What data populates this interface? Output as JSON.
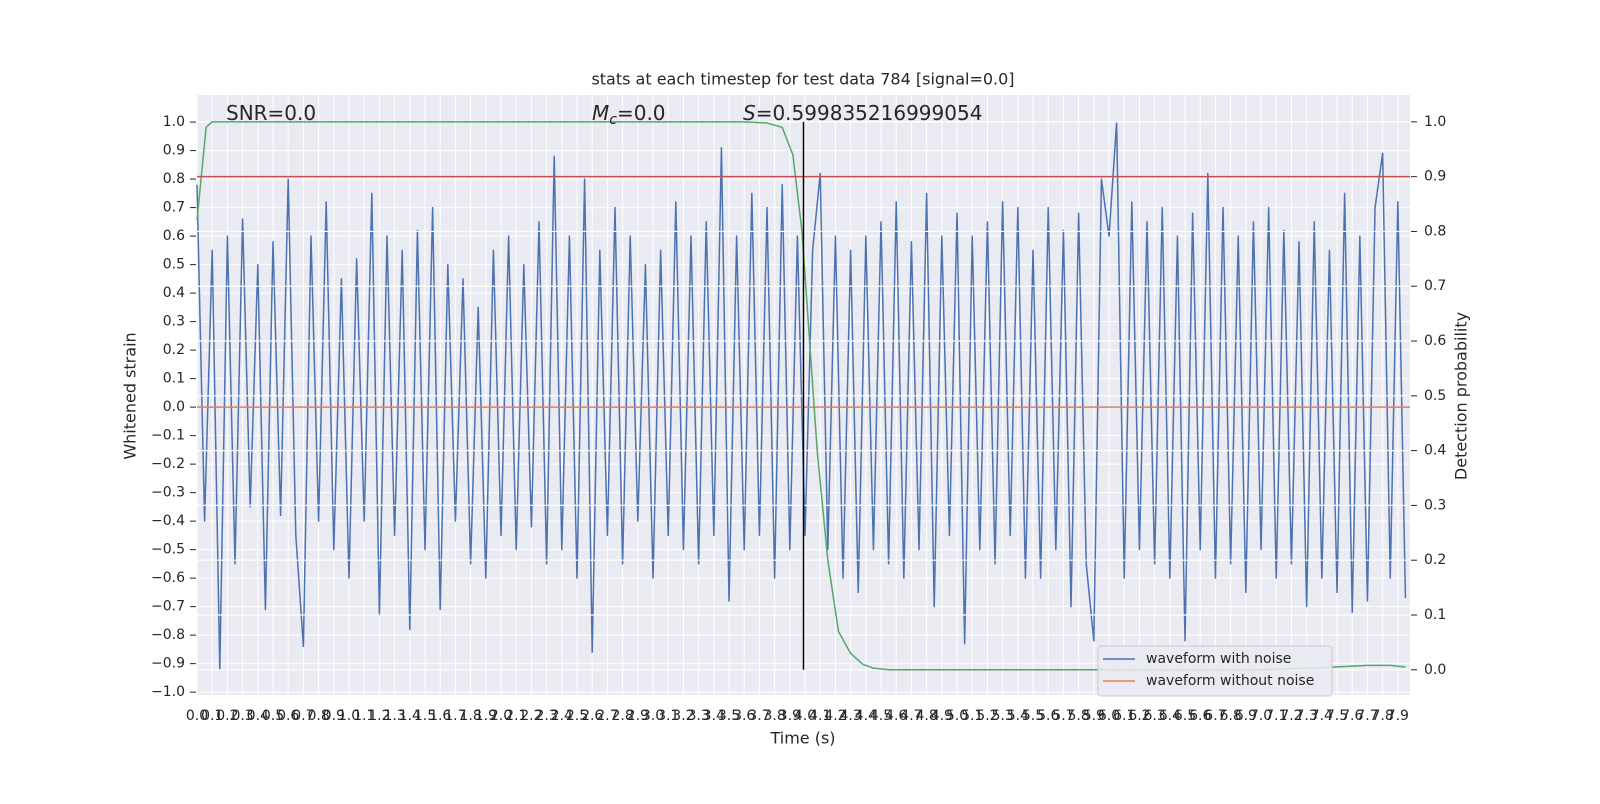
{
  "chart_data": {
    "type": "line",
    "title": "stats at each timestep for test data 784 [signal=0.0]",
    "x_label": "Time (s)",
    "y_label": "Whitened strain",
    "y2_label": "Detection probability",
    "annotations": [
      {
        "text": "SNR=0.0"
      },
      {
        "symbol": "M",
        "subscript": "c",
        "text": "=0.0"
      },
      {
        "symbol": "S",
        "text": "=0.599835216999054"
      }
    ],
    "grid": true,
    "background": "#eaeaf2",
    "legend": "lower right",
    "xlim": [
      0,
      7.98
    ],
    "ylim": [
      -1.01,
      1.095
    ],
    "y2lim": [
      -0.046,
      1.049
    ],
    "xticks": [
      {
        "value": 0,
        "label": "0.0"
      },
      0.1,
      0.2,
      0.3,
      0.4,
      0.5,
      0.6,
      0.7,
      0.8,
      0.9,
      {
        "value": 1,
        "label": "1.0"
      },
      1.1,
      1.2,
      1.3,
      1.4,
      1.5,
      1.6,
      1.7,
      1.8,
      1.9,
      {
        "value": 2,
        "label": "2.0"
      },
      2.1,
      2.2,
      2.3,
      2.4,
      2.5,
      2.6,
      2.7,
      2.8,
      2.9,
      {
        "value": 3,
        "label": "3.0"
      },
      3.1,
      3.2,
      3.3,
      3.4,
      3.5,
      3.6,
      3.7,
      3.8,
      3.9,
      {
        "value": 4,
        "label": "4.0"
      },
      4.1,
      4.2,
      4.3,
      4.4,
      4.5,
      4.6,
      4.7,
      4.8,
      4.9,
      {
        "value": 5,
        "label": "5.0"
      },
      5.1,
      5.2,
      5.3,
      5.4,
      5.5,
      5.6,
      5.7,
      5.8,
      5.9,
      {
        "value": 6,
        "label": "6.0"
      },
      6.1,
      6.2,
      6.3,
      6.4,
      6.5,
      6.6,
      6.7,
      6.8,
      6.9,
      {
        "value": 7,
        "label": "7.0"
      },
      7.1,
      7.2,
      7.3,
      7.4,
      7.5,
      7.6,
      7.7,
      7.8,
      7.9
    ],
    "yticks": [
      {
        "value": -1,
        "label": "−1.0"
      },
      {
        "value": -0.9,
        "label": "−0.9"
      },
      {
        "value": -0.8,
        "label": "−0.8"
      },
      {
        "value": -0.7,
        "label": "−0.7"
      },
      {
        "value": -0.6,
        "label": "−0.6"
      },
      {
        "value": -0.5,
        "label": "−0.5"
      },
      {
        "value": -0.4,
        "label": "−0.4"
      },
      {
        "value": -0.3,
        "label": "−0.3"
      },
      {
        "value": -0.2,
        "label": "−0.2"
      },
      {
        "value": -0.1,
        "label": "−0.1"
      },
      {
        "value": 0,
        "label": "0.0"
      },
      0.1,
      0.2,
      0.3,
      0.4,
      0.5,
      0.6,
      0.7,
      0.8,
      0.9,
      {
        "value": 1,
        "label": "1.0"
      }
    ],
    "y2ticks": [
      {
        "value": 0,
        "label": "0.0"
      },
      0.1,
      0.2,
      0.3,
      0.4,
      0.5,
      0.6,
      0.7,
      0.8,
      0.9,
      {
        "value": 1,
        "label": "1.0"
      }
    ],
    "series": [
      {
        "name": "waveform with noise",
        "color": "#4c72b0",
        "x": [
          0,
          0.05,
          0.1,
          0.15,
          0.2,
          0.25,
          0.3,
          0.35,
          0.4,
          0.45,
          0.5,
          0.55,
          0.6,
          0.65,
          0.7,
          0.75,
          0.8,
          0.85,
          0.9,
          0.95,
          1,
          1.05,
          1.1,
          1.15,
          1.2,
          1.25,
          1.3,
          1.35,
          1.4,
          1.45,
          1.5,
          1.55,
          1.6,
          1.65,
          1.7,
          1.75,
          1.8,
          1.85,
          1.9,
          1.95,
          2,
          2.05,
          2.1,
          2.15,
          2.2,
          2.25,
          2.3,
          2.35,
          2.4,
          2.45,
          2.5,
          2.55,
          2.6,
          2.65,
          2.7,
          2.75,
          2.8,
          2.85,
          2.9,
          2.95,
          3,
          3.05,
          3.1,
          3.15,
          3.2,
          3.25,
          3.3,
          3.35,
          3.4,
          3.45,
          3.5,
          3.55,
          3.6,
          3.65,
          3.7,
          3.75,
          3.8,
          3.85,
          3.9,
          3.95,
          4,
          4.05,
          4.1,
          4.15,
          4.2,
          4.25,
          4.3,
          4.35,
          4.4,
          4.45,
          4.5,
          4.55,
          4.6,
          4.65,
          4.7,
          4.75,
          4.8,
          4.85,
          4.9,
          4.95,
          5,
          5.05,
          5.1,
          5.15,
          5.2,
          5.25,
          5.3,
          5.35,
          5.4,
          5.45,
          5.5,
          5.55,
          5.6,
          5.65,
          5.7,
          5.75,
          5.8,
          5.85,
          5.9,
          5.95,
          6,
          6.05,
          6.1,
          6.15,
          6.2,
          6.25,
          6.3,
          6.35,
          6.4,
          6.45,
          6.5,
          6.55,
          6.6,
          6.65,
          6.7,
          6.75,
          6.8,
          6.85,
          6.9,
          6.95,
          7,
          7.05,
          7.1,
          7.15,
          7.2,
          7.25,
          7.3,
          7.35,
          7.4,
          7.45,
          7.5,
          7.55,
          7.6,
          7.65,
          7.7,
          7.75,
          7.8,
          7.85,
          7.9,
          7.95
        ],
        "values": [
          0.78,
          -0.4,
          0.55,
          -0.92,
          0.6,
          -0.55,
          0.66,
          -0.35,
          0.5,
          -0.71,
          0.58,
          -0.38,
          0.8,
          -0.45,
          -0.84,
          0.6,
          -0.4,
          0.72,
          -0.5,
          0.45,
          -0.6,
          0.52,
          -0.4,
          0.75,
          -0.73,
          0.6,
          -0.45,
          0.55,
          -0.78,
          0.62,
          -0.5,
          0.7,
          -0.71,
          0.5,
          -0.4,
          0.45,
          -0.55,
          0.35,
          -0.6,
          0.55,
          -0.45,
          0.6,
          -0.5,
          0.5,
          -0.42,
          0.65,
          -0.55,
          0.88,
          -0.5,
          0.6,
          -0.6,
          0.8,
          -0.86,
          0.55,
          -0.45,
          0.7,
          -0.55,
          0.6,
          -0.4,
          0.5,
          -0.6,
          0.55,
          -0.45,
          0.72,
          -0.5,
          0.6,
          -0.55,
          0.65,
          -0.45,
          0.91,
          -0.68,
          0.6,
          -0.5,
          0.75,
          -0.45,
          0.7,
          -0.6,
          0.78,
          -0.5,
          0.6,
          -0.45,
          0.55,
          0.82,
          -0.5,
          0.6,
          -0.6,
          0.55,
          -0.65,
          0.6,
          -0.5,
          0.65,
          -0.55,
          0.72,
          -0.6,
          0.58,
          -0.5,
          0.75,
          -0.7,
          0.6,
          -0.45,
          0.68,
          -0.83,
          0.6,
          -0.5,
          0.65,
          -0.55,
          0.72,
          -0.45,
          0.7,
          -0.6,
          0.55,
          -0.6,
          0.7,
          -0.5,
          0.62,
          -0.7,
          0.68,
          -0.55,
          -0.82,
          0.8,
          0.6,
          1.0,
          -0.6,
          0.72,
          -0.5,
          0.65,
          -0.55,
          0.7,
          -0.6,
          0.6,
          -0.82,
          0.68,
          -0.5,
          0.82,
          -0.6,
          0.7,
          -0.55,
          0.6,
          -0.65,
          0.65,
          -0.5,
          0.7,
          -0.6,
          0.62,
          -0.55,
          0.58,
          -0.7,
          0.65,
          -0.6,
          0.55,
          -0.65,
          0.75,
          -0.72,
          0.6,
          -0.68,
          0.7,
          0.89,
          -0.6,
          0.72,
          -0.67
        ]
      },
      {
        "name": "waveform without noise",
        "color": "#dd8452",
        "x": [
          0,
          7.98
        ],
        "values": [
          0,
          0
        ]
      }
    ],
    "y2_series": {
      "color": "#55a868",
      "axis": "y2",
      "x": [
        0,
        0.06,
        0.1,
        0.5,
        1,
        2,
        3,
        3.6,
        3.75,
        3.85,
        3.92,
        3.98,
        4.03,
        4.08,
        4.15,
        4.22,
        4.3,
        4.38,
        4.45,
        4.55,
        5,
        6,
        7,
        7.4,
        7.7,
        7.85,
        7.95
      ],
      "values": [
        0.82,
        0.99,
        1.0,
        1.0,
        1.0,
        1.0,
        1.0,
        1.0,
        0.998,
        0.99,
        0.94,
        0.8,
        0.6,
        0.4,
        0.2,
        0.07,
        0.03,
        0.01,
        0.003,
        0.0,
        0.0,
        0.0,
        0.0,
        0.004,
        0.008,
        0.008,
        0.005
      ]
    },
    "threshold": {
      "value": 0.9,
      "axis": "y2",
      "color": "#c44e52"
    },
    "vline": {
      "x": 3.99,
      "y2_range": [
        0,
        1
      ],
      "color": "#000000"
    }
  }
}
